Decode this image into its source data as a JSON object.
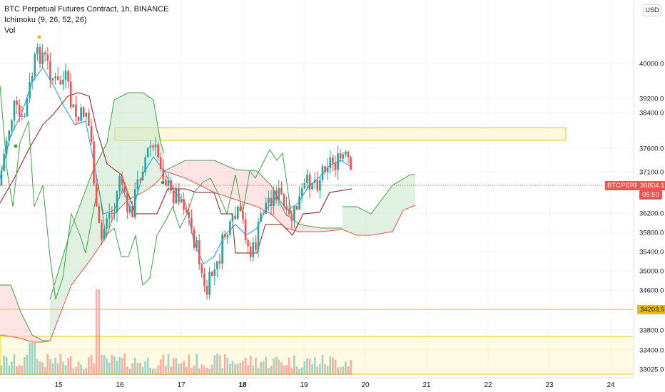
{
  "header": {
    "symbol_line": "BTC Perpetual Futures Contract, 1h, BINANCE",
    "indicator_1": "Ichimoku (9, 26, 52, 26)",
    "indicator_2": "Vol"
  },
  "currency_button": "USD",
  "price_axis": {
    "ticks": [
      "40000.0",
      "39200.0",
      "38400.0",
      "37600.0",
      "37100.0",
      "36200.0",
      "35800.0",
      "35400.0",
      "35000.0",
      "34600.0",
      "33800.0",
      "33400.0",
      "33025.0"
    ]
  },
  "time_axis": {
    "ticks": [
      "15",
      "16",
      "17",
      "18",
      "19",
      "20",
      "21",
      "22",
      "23",
      "24"
    ]
  },
  "last_price": {
    "symbol": "BTCPERP",
    "value": "36804.1",
    "countdown": "09:50",
    "color": "#ef5350"
  },
  "level_marker": {
    "value": "34203.5",
    "color": "#f0b90b"
  },
  "colors": {
    "up": "#26a69a",
    "down": "#ef5350",
    "tenkan": "#2196f3",
    "kijun": "#8b1a1a",
    "lagging": "#43a047",
    "cloud_bull": "#c8e6c9",
    "cloud_bear": "#ffcdd2",
    "zone": "#fff3c4"
  }
}
